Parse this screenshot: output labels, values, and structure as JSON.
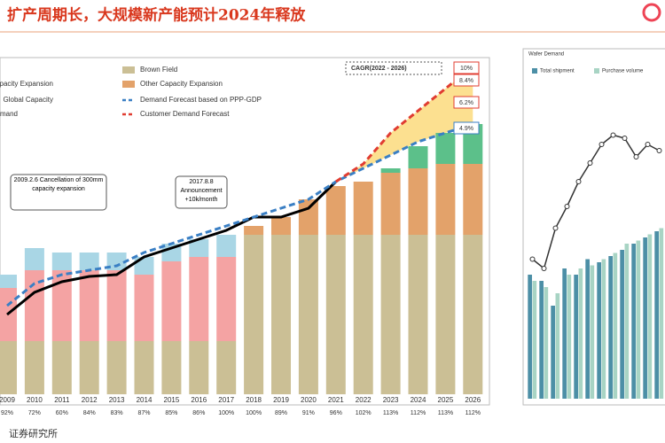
{
  "header": {
    "title": "扩产周期长，大规模新产能预计2024年释放"
  },
  "footer": {
    "source": "证券研究所"
  },
  "chart_data": [
    {
      "type": "bar",
      "stacked": true,
      "categories": [
        "2009",
        "2010",
        "2011",
        "2012",
        "2013",
        "2014",
        "2015",
        "2016",
        "2017",
        "2018",
        "2019",
        "2020",
        "2021",
        "2022",
        "2023",
        "2024",
        "2025",
        "2026"
      ],
      "row_labels": [
        "92%",
        "72%",
        "60%",
        "84%",
        "83%",
        "87%",
        "85%",
        "86%",
        "100%",
        "100%",
        "89%",
        "91%",
        "96%",
        "102%",
        "113%",
        "112%",
        "113%",
        "112%"
      ],
      "ylim": [
        0,
        380
      ],
      "series": [
        {
          "name": "Brown Field",
          "color": "#cbbf95",
          "values": [
            60,
            60,
            60,
            60,
            60,
            60,
            60,
            60,
            60,
            180,
            180,
            180,
            180,
            180,
            180,
            180,
            180,
            180
          ]
        },
        {
          "name": "Capacity Expansion",
          "color": "#f4a3a3",
          "values": [
            60,
            80,
            80,
            80,
            80,
            75,
            90,
            95,
            95,
            null,
            null,
            null,
            null,
            null,
            null,
            null,
            null,
            null
          ]
        },
        {
          "name": "Other Capacity Expansion",
          "color": "#e3a26a",
          "values": [
            null,
            null,
            null,
            null,
            null,
            null,
            null,
            null,
            null,
            10,
            20,
            40,
            55,
            60,
            70,
            75,
            80,
            80
          ]
        },
        {
          "color": "#a9d6e5",
          "values": [
            15,
            25,
            20,
            20,
            20,
            20,
            20,
            20,
            25,
            null,
            null,
            null,
            null,
            null,
            null,
            null,
            null,
            null
          ]
        },
        {
          "name": "Demand",
          "color": "#5cc08a",
          "values": [
            null,
            null,
            null,
            null,
            null,
            null,
            null,
            null,
            null,
            null,
            null,
            null,
            null,
            null,
            5,
            25,
            35,
            45
          ]
        },
        {
          "name": "Global Capacity",
          "kind": "line",
          "color": "#000000",
          "values": [
            90,
            115,
            127,
            133,
            135,
            155,
            165,
            175,
            185,
            200,
            200,
            210,
            240,
            null,
            null,
            null,
            null,
            null
          ]
        },
        {
          "name": "Demand Forecast based on PPP-GDP",
          "kind": "line",
          "dash": true,
          "color": "#3a7fc4",
          "values": [
            100,
            125,
            135,
            140,
            145,
            160,
            170,
            180,
            190,
            200,
            210,
            220,
            240,
            255,
            270,
            285,
            295,
            305
          ]
        },
        {
          "name": "Customer Demand Forecast",
          "kind": "line",
          "dash": true,
          "color": "#e03c31",
          "values": [
            135,
            null,
            null,
            null,
            null,
            null,
            null,
            null,
            null,
            null,
            null,
            null,
            240,
            260,
            295,
            320,
            345,
            370
          ]
        }
      ],
      "annotations": [
        "CAGR(2022 - 2026)",
        "2009.2.6 Cancellation of 300mm capacity expansion",
        "2017.8.8 Announcement +10k/month",
        "10%",
        "8.4%",
        "6.2%",
        "4.9%"
      ]
    },
    {
      "type": "bar",
      "stacked": false,
      "title": "Wafer Demand",
      "ylim": [
        0,
        100
      ],
      "series": [
        {
          "name": "Total shipment",
          "color": "#4c8fa6",
          "values": [
            40,
            38,
            30,
            42,
            40,
            45,
            44,
            46,
            48,
            50,
            52,
            54
          ]
        },
        {
          "name": "Purchase volume",
          "color": "#a8d4c4",
          "values": [
            38,
            36,
            34,
            40,
            42,
            43,
            45,
            47,
            50,
            51,
            53,
            55
          ]
        },
        {
          "kind": "line",
          "color": "#333333",
          "values": [
            45,
            42,
            55,
            62,
            70,
            76,
            82,
            85,
            84,
            78,
            82,
            80
          ]
        }
      ]
    }
  ]
}
